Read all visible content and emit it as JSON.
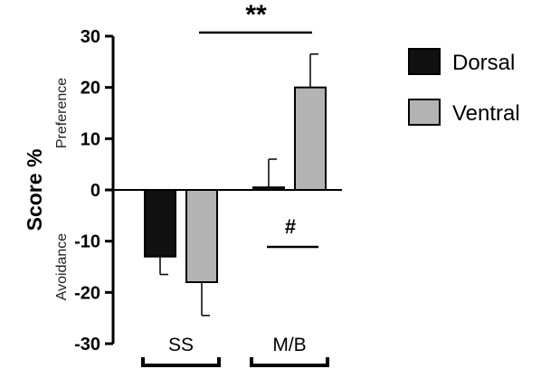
{
  "chart_data": {
    "type": "bar",
    "categories": [
      "SS",
      "M/B"
    ],
    "series": [
      {
        "name": "Dorsal",
        "values": [
          -13,
          0.5
        ],
        "errors": [
          3.5,
          5.5
        ],
        "color": "#111111"
      },
      {
        "name": "Ventral",
        "values": [
          -18,
          20
        ],
        "errors": [
          6.5,
          6.5
        ],
        "color": "#b3b3b3"
      }
    ],
    "ylabel": "Score %",
    "ylim": [
      -30,
      30
    ],
    "yticks": [
      {
        "value": 30,
        "label": "30"
      },
      {
        "value": 20,
        "label": "20"
      },
      {
        "value": 10,
        "label": "10"
      },
      {
        "value": 0,
        "label": "0"
      },
      {
        "value": -10,
        "label": "-10"
      },
      {
        "value": -20,
        "label": "-20"
      },
      {
        "value": -30,
        "label": "-30"
      }
    ],
    "region_labels": {
      "top": "Preference",
      "bottom": "Avoidance"
    },
    "significance": [
      {
        "label": "**",
        "from_category": 0,
        "to_category": 1,
        "placement": "top"
      },
      {
        "label": "#",
        "category": 1,
        "placement": "below-zero"
      }
    ],
    "legend_position": "right",
    "grid": false
  }
}
